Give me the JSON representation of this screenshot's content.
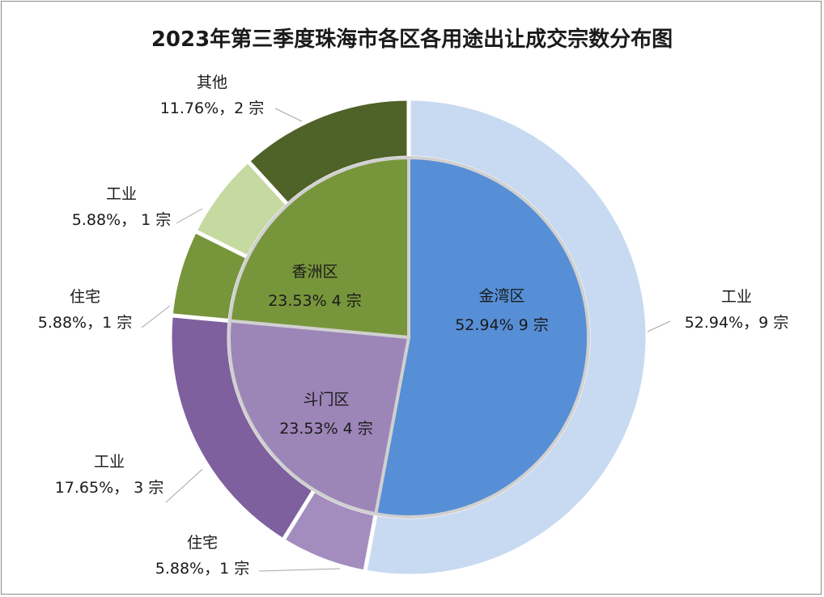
{
  "chart_data": {
    "type": "pie",
    "title": "2023年第三季度珠海市各区各用途出让成交宗数分布图",
    "inner_ring": [
      {
        "name": "金湾区",
        "count": 9,
        "percent": 52.94,
        "text": "52.94% 9 宗",
        "color": "#568fd6"
      },
      {
        "name": "斗门区",
        "count": 4,
        "percent": 23.53,
        "text": "23.53% 4 宗",
        "color": "#9c85b7"
      },
      {
        "name": "香洲区",
        "count": 4,
        "percent": 23.53,
        "text": "23.53% 4 宗",
        "color": "#77953a"
      }
    ],
    "outer_ring": [
      {
        "name": "工业",
        "district": "金湾区",
        "count": 9,
        "percent": 52.94,
        "text": "52.94%，9 宗",
        "color": "#c8daf1"
      },
      {
        "name": "住宅",
        "district": "斗门区",
        "count": 1,
        "percent": 5.88,
        "text": "5.88%，1 宗",
        "color": "#a38dbf"
      },
      {
        "name": "工业",
        "district": "斗门区",
        "count": 3,
        "percent": 17.65,
        "text": "17.65%， 3 宗",
        "color": "#7e609e"
      },
      {
        "name": "住宅",
        "district": "香洲区",
        "count": 1,
        "percent": 5.88,
        "text": "5.88%，1 宗",
        "color": "#77953a"
      },
      {
        "name": "工业",
        "district": "香洲区",
        "count": 1,
        "percent": 5.88,
        "text": "5.88%， 1 宗",
        "color": "#c5d9a0"
      },
      {
        "name": "其他",
        "district": "香洲区",
        "count": 2,
        "percent": 11.76,
        "text": "11.76%，2 宗",
        "color": "#4f6228"
      }
    ]
  }
}
